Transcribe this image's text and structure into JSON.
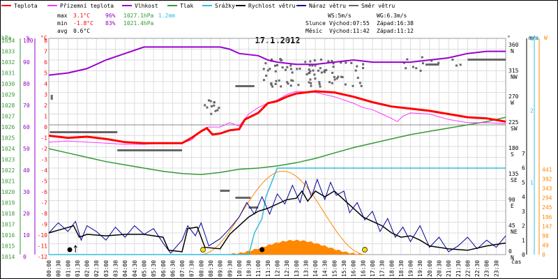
{
  "legend": [
    {
      "key": "teplota",
      "label": "Teplota",
      "color": "#ff0000"
    },
    {
      "key": "prizemni",
      "label": "Přízemní teplota",
      "color": "#ff33ff"
    },
    {
      "key": "vlhkost",
      "label": "Vlhkost",
      "color": "#9900cc"
    },
    {
      "key": "tlak",
      "label": "Tlak",
      "color": "#339933"
    },
    {
      "key": "srazky",
      "label": "Srážky",
      "color": "#33bbdd"
    },
    {
      "key": "rychlost",
      "label": "Rychlost větru",
      "color": "#000000"
    },
    {
      "key": "naraz",
      "label": "Náraz větru",
      "color": "#000099"
    },
    {
      "key": "smer",
      "label": "Směr větru",
      "color": "#666666"
    }
  ],
  "stats": {
    "labels": {
      "max": "max",
      "min": "min",
      "avg": "avg"
    },
    "max": {
      "teplota": "3.1°C",
      "vlhkost": "96%",
      "tlak": "1027.1hPa",
      "srazky": "1.2mm"
    },
    "min": {
      "teplota": "-1.8°C",
      "vlhkost": "83%",
      "tlak": "1021.4hPa"
    },
    "avg": {
      "teplota": "0.6°C"
    }
  },
  "info": {
    "ws": "WS:5m/s",
    "wg": "WG:6.3m/s",
    "slunce_label": "Slunce",
    "slunce_vychod": "Východ:07:55",
    "slunce_zapad": "Západ:16:38",
    "mesic_label": "Měsíc",
    "mesic_vychod": "Východ:11:42",
    "mesic_zapad": "Západ:11:12"
  },
  "chart_data": {
    "type": "line",
    "title": "17.1.2012",
    "x_unit": "čas",
    "axes": {
      "hpa": {
        "label": "hPa",
        "ticks": [
          1034,
          1033,
          1032,
          1031,
          1030,
          1029,
          1028,
          1027,
          1026,
          1025,
          1024,
          1023,
          1022,
          1021,
          1020,
          1019,
          1018,
          1017,
          1016,
          1015,
          1014
        ],
        "color": "#339933"
      },
      "pct": {
        "label": "%",
        "ticks": [
          100,
          90,
          80,
          70,
          60,
          50,
          40,
          30,
          20,
          10,
          0
        ],
        "color": "#9900cc"
      },
      "temp": {
        "label": "°C",
        "ticks": [
          8,
          7,
          6,
          5,
          4,
          3,
          2,
          1,
          0,
          -1,
          -2,
          -3,
          -4,
          -5,
          -6,
          -7,
          -8,
          -9,
          -10,
          -11,
          -12
        ],
        "range": [
          -12,
          8
        ],
        "color": "#ff0000"
      },
      "dir": {
        "label": "°",
        "ticks": [
          {
            "v": "360",
            "n": "N"
          },
          {
            "v": "315",
            "n": "NW"
          },
          {
            "v": "270",
            "n": "W"
          },
          {
            "v": "225",
            "n": "SW"
          },
          {
            "v": "180",
            "n": "S"
          },
          {
            "v": "135",
            "n": "SE"
          },
          {
            "v": "90",
            "n": "E"
          },
          {
            "v": "45",
            "n": "NE"
          },
          {
            "v": "0",
            "n": "N"
          }
        ]
      },
      "ms": {
        "label": "m/s",
        "ticks": [
          "7",
          "6",
          "5",
          "4",
          "3",
          "2",
          "1",
          "0"
        ]
      },
      "rain": {
        "label": "mm",
        "ticks": [
          "3",
          "2",
          "1"
        ],
        "color": "#33bbdd"
      },
      "solar": {
        "label": "W",
        "ticks": [
          "441",
          "392",
          "343",
          "294",
          "245",
          "196",
          "147",
          "98",
          "49",
          "0"
        ],
        "color": "#ff8800"
      }
    },
    "times": [
      "00:00",
      "00:30",
      "01:00",
      "01:30",
      "02:00",
      "02:30",
      "03:00",
      "03:30",
      "04:00",
      "04:30",
      "05:00",
      "05:30",
      "06:00",
      "06:30",
      "07:00",
      "07:30",
      "08:00",
      "08:30",
      "09:00",
      "09:30",
      "10:00",
      "10:30",
      "11:00",
      "11:30",
      "12:00",
      "12:30",
      "13:00",
      "13:30",
      "14:00",
      "14:30",
      "15:00",
      "15:30",
      "16:00",
      "16:30",
      "17:00",
      "17:30",
      "18:00",
      "18:30",
      "19:00",
      "19:30",
      "20:00",
      "20:30",
      "21:00",
      "21:30",
      "22:00",
      "22:30",
      "23:00",
      "23:30"
    ],
    "series": {
      "teplota": [
        [
          0,
          -1
        ],
        [
          1,
          -1.2
        ],
        [
          2,
          -1.1
        ],
        [
          3,
          -1.3
        ],
        [
          4,
          -1.6
        ],
        [
          5,
          -1.7
        ],
        [
          6,
          -1.7
        ],
        [
          7,
          -1.7
        ],
        [
          7.5,
          -1.2
        ],
        [
          8,
          -0.6
        ],
        [
          8.3,
          -0.3
        ],
        [
          8.6,
          -0.9
        ],
        [
          9,
          -0.8
        ],
        [
          9.5,
          -0.5
        ],
        [
          10,
          -0.4
        ],
        [
          10.3,
          0.5
        ],
        [
          11,
          1.1
        ],
        [
          11.5,
          2.0
        ],
        [
          12,
          2.2
        ],
        [
          12.5,
          2.6
        ],
        [
          13,
          2.9
        ],
        [
          14,
          3.1
        ],
        [
          15,
          3.0
        ],
        [
          16,
          2.6
        ],
        [
          17,
          2.1
        ],
        [
          18,
          1.7
        ],
        [
          19,
          1.5
        ],
        [
          20,
          1.3
        ],
        [
          21,
          1.0
        ],
        [
          22,
          0.7
        ],
        [
          23,
          0.6
        ],
        [
          24,
          0.3
        ]
      ],
      "prizemni": [
        [
          0,
          -1.6
        ],
        [
          1,
          -1.5
        ],
        [
          2,
          -1.6
        ],
        [
          3,
          -1.7
        ],
        [
          4,
          -1.8
        ],
        [
          5,
          -1.8
        ],
        [
          6,
          -1.7
        ],
        [
          7,
          -1.7
        ],
        [
          7.5,
          -1.4
        ],
        [
          8,
          -0.5
        ],
        [
          8.4,
          -0.2
        ],
        [
          9,
          -0.2
        ],
        [
          9.5,
          0.2
        ],
        [
          10,
          -0.1
        ],
        [
          10.5,
          1.0
        ],
        [
          11,
          1.6
        ],
        [
          11.5,
          2.0
        ],
        [
          12,
          2.3
        ],
        [
          12.5,
          2.8
        ],
        [
          13,
          3.1
        ],
        [
          14,
          3.0
        ],
        [
          15,
          2.6
        ],
        [
          16,
          2.0
        ],
        [
          16.5,
          1.6
        ],
        [
          17,
          1.4
        ],
        [
          17.5,
          1.0
        ],
        [
          18,
          0.6
        ],
        [
          18.3,
          0.3
        ],
        [
          18.6,
          0.8
        ],
        [
          19,
          1.1
        ],
        [
          20,
          1.0
        ],
        [
          21,
          0.5
        ],
        [
          22,
          0.2
        ],
        [
          23,
          0.2
        ],
        [
          24,
          0.1
        ]
      ],
      "vlhkost": [
        [
          0,
          83
        ],
        [
          1,
          84
        ],
        [
          2,
          86
        ],
        [
          3,
          90
        ],
        [
          4,
          93
        ],
        [
          5,
          96
        ],
        [
          6,
          96
        ],
        [
          7,
          96
        ],
        [
          8,
          96
        ],
        [
          9,
          96
        ],
        [
          9.5,
          95
        ],
        [
          10,
          93
        ],
        [
          11,
          92
        ],
        [
          11.5,
          90
        ],
        [
          12,
          89
        ],
        [
          13,
          88
        ],
        [
          14,
          88
        ],
        [
          15,
          89
        ],
        [
          16,
          90
        ],
        [
          17,
          89
        ],
        [
          18,
          89
        ],
        [
          19,
          89
        ],
        [
          20,
          90
        ],
        [
          21,
          91
        ],
        [
          22,
          93
        ],
        [
          23,
          94
        ],
        [
          24,
          94
        ]
      ],
      "tlak": [
        [
          0,
          1023.8
        ],
        [
          1,
          1023.4
        ],
        [
          2,
          1023.0
        ],
        [
          3,
          1022.6
        ],
        [
          4,
          1022.3
        ],
        [
          5,
          1022.0
        ],
        [
          6,
          1021.7
        ],
        [
          7,
          1021.5
        ],
        [
          8,
          1021.4
        ],
        [
          9,
          1021.6
        ],
        [
          10,
          1021.9
        ],
        [
          11,
          1022.0
        ],
        [
          12,
          1022.2
        ],
        [
          13,
          1022.5
        ],
        [
          14,
          1022.9
        ],
        [
          15,
          1023.4
        ],
        [
          16,
          1023.9
        ],
        [
          17,
          1024.3
        ],
        [
          18,
          1024.7
        ],
        [
          19,
          1025.1
        ],
        [
          20,
          1025.4
        ],
        [
          21,
          1025.7
        ],
        [
          22,
          1026.0
        ],
        [
          23,
          1026.3
        ],
        [
          24,
          1026.7
        ]
      ],
      "srazky": [
        [
          0,
          0
        ],
        [
          10.5,
          0
        ],
        [
          10.8,
          0.3
        ],
        [
          11.2,
          0.5
        ],
        [
          11.4,
          0.8
        ],
        [
          11.7,
          1.0
        ],
        [
          12,
          1.2
        ],
        [
          13,
          1.2
        ],
        [
          24,
          1.2
        ]
      ],
      "rychlost": [
        [
          0,
          1.5
        ],
        [
          0.8,
          1.8
        ],
        [
          1.3,
          2.0
        ],
        [
          1.6,
          1.2
        ],
        [
          2,
          1.4
        ],
        [
          3,
          1.3
        ],
        [
          4,
          1.4
        ],
        [
          5,
          1.4
        ],
        [
          6,
          1.2
        ],
        [
          6.3,
          0.3
        ],
        [
          7,
          0.2
        ],
        [
          7.3,
          1.8
        ],
        [
          7.8,
          1.9
        ],
        [
          8.2,
          0.5
        ],
        [
          9,
          0.4
        ],
        [
          9.5,
          1.4
        ],
        [
          10,
          2.0
        ],
        [
          10.5,
          2.6
        ],
        [
          11,
          3.0
        ],
        [
          11.5,
          3.2
        ],
        [
          12,
          3.5
        ],
        [
          12.5,
          3.8
        ],
        [
          13,
          3.9
        ],
        [
          13.3,
          4.4
        ],
        [
          13.6,
          3.7
        ],
        [
          14,
          4.4
        ],
        [
          14.5,
          4.0
        ],
        [
          15,
          4.4
        ],
        [
          15.5,
          3.8
        ],
        [
          16,
          3.2
        ],
        [
          16.5,
          2.6
        ],
        [
          17,
          2.3
        ],
        [
          17.5,
          2.0
        ],
        [
          18,
          1.5
        ],
        [
          18.5,
          1.2
        ],
        [
          19,
          1.3
        ],
        [
          19.5,
          1.0
        ],
        [
          20,
          0.6
        ],
        [
          21,
          0.4
        ],
        [
          22,
          0.3
        ],
        [
          23,
          0.6
        ],
        [
          24,
          0.8
        ]
      ],
      "naraz": [
        [
          0,
          1.5
        ],
        [
          0.5,
          2.2
        ],
        [
          1,
          1.6
        ],
        [
          1.4,
          2.3
        ],
        [
          1.7,
          1.0
        ],
        [
          2,
          2.0
        ],
        [
          2.5,
          1.6
        ],
        [
          3,
          1.0
        ],
        [
          3.5,
          1.9
        ],
        [
          4,
          1.2
        ],
        [
          4.5,
          2.0
        ],
        [
          5,
          1.4
        ],
        [
          5.5,
          1.8
        ],
        [
          6,
          0.8
        ],
        [
          6.4,
          0.1
        ],
        [
          7,
          1.0
        ],
        [
          7.3,
          2.0
        ],
        [
          7.7,
          1.3
        ],
        [
          8,
          2.2
        ],
        [
          8.4,
          0.6
        ],
        [
          9,
          1.1
        ],
        [
          9.5,
          1.8
        ],
        [
          10,
          2.6
        ],
        [
          10.4,
          3.6
        ],
        [
          10.8,
          2.8
        ],
        [
          11.2,
          4.0
        ],
        [
          11.6,
          2.8
        ],
        [
          12,
          4.2
        ],
        [
          12.4,
          3.5
        ],
        [
          12.8,
          4.8
        ],
        [
          13.2,
          3.6
        ],
        [
          13.5,
          5.1
        ],
        [
          13.8,
          4.0
        ],
        [
          14.1,
          5.2
        ],
        [
          14.5,
          3.8
        ],
        [
          14.8,
          5.0
        ],
        [
          15.1,
          4.1
        ],
        [
          15.5,
          4.4
        ],
        [
          15.8,
          2.9
        ],
        [
          16.2,
          3.6
        ],
        [
          16.6,
          2.4
        ],
        [
          17,
          3.0
        ],
        [
          17.4,
          1.6
        ],
        [
          17.8,
          2.5
        ],
        [
          18.2,
          1.2
        ],
        [
          18.6,
          1.9
        ],
        [
          19,
          0.9
        ],
        [
          19.5,
          2.0
        ],
        [
          20,
          0.5
        ],
        [
          20.5,
          1.2
        ],
        [
          21,
          0.2
        ],
        [
          21.5,
          0.6
        ],
        [
          22,
          1.2
        ],
        [
          22.5,
          0.4
        ],
        [
          23,
          1.0
        ],
        [
          23.5,
          0.5
        ],
        [
          24,
          1.3
        ]
      ],
      "solar_peak": [
        12.25,
        441
      ],
      "solar_range": [
        7.95,
        16.65
      ],
      "sun_marks": [
        8.1,
        16.6
      ],
      "moon_marks": [
        1.1,
        11.2
      ]
    }
  }
}
